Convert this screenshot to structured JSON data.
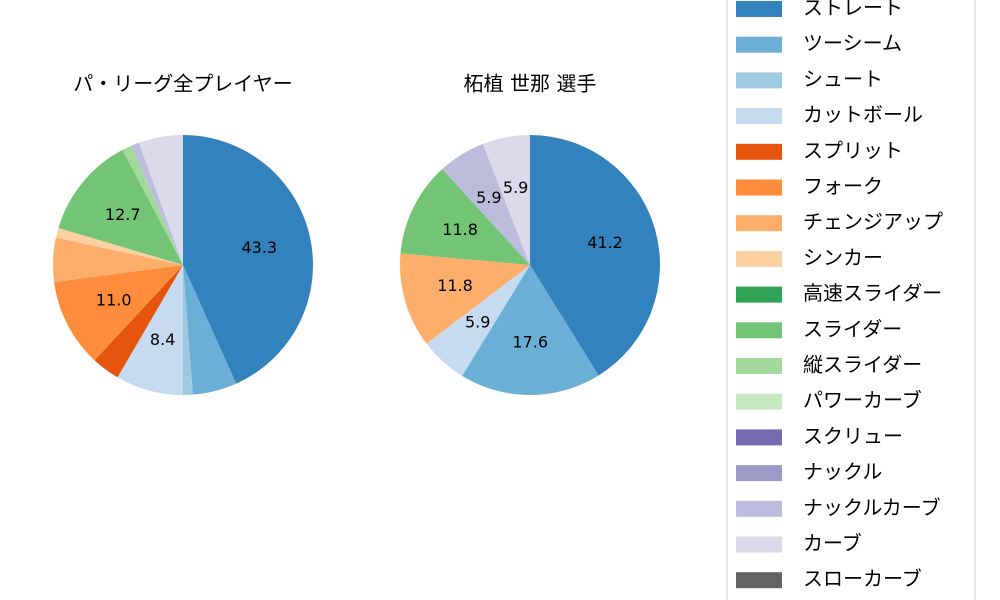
{
  "chart_data": [
    {
      "type": "pie",
      "title": "パ・リーグ全プレイヤー",
      "categories": [
        "ストレート",
        "ツーシーム",
        "シュート",
        "カットボール",
        "スプリット",
        "フォーク",
        "チェンジアップ",
        "シンカー",
        "高速スライダー",
        "スライダー",
        "縦スライダー",
        "パワーカーブ",
        "スクリュー",
        "ナックル",
        "ナックルカーブ",
        "カーブ",
        "スローカーブ"
      ],
      "colors": [
        "#3182bd",
        "#6baed6",
        "#9ecae1",
        "#c6dbef",
        "#e6550d",
        "#fd8d3c",
        "#fdae6b",
        "#fdd0a2",
        "#31a354",
        "#74c476",
        "#a1d99b",
        "#c7e9c0",
        "#756bb1",
        "#9e9ac8",
        "#bcbddc",
        "#dadaeb",
        "#636363"
      ],
      "values": [
        43.3,
        5.5,
        1.2,
        8.4,
        3.5,
        11.0,
        5.5,
        1.2,
        0,
        12.7,
        1.2,
        0,
        0,
        0,
        1.0,
        5.5,
        0
      ],
      "value_labels": [
        "43.3",
        null,
        null,
        "8.4",
        null,
        "11.0",
        null,
        null,
        null,
        "12.7",
        null,
        null,
        null,
        null,
        null,
        null,
        null
      ]
    },
    {
      "type": "pie",
      "title": "柘植 世那  選手",
      "categories": [
        "ストレート",
        "ツーシーム",
        "シュート",
        "カットボール",
        "スプリット",
        "フォーク",
        "チェンジアップ",
        "シンカー",
        "高速スライダー",
        "スライダー",
        "縦スライダー",
        "パワーカーブ",
        "スクリュー",
        "ナックル",
        "ナックルカーブ",
        "カーブ",
        "スローカーブ"
      ],
      "colors": [
        "#3182bd",
        "#6baed6",
        "#9ecae1",
        "#c6dbef",
        "#e6550d",
        "#fd8d3c",
        "#fdae6b",
        "#fdd0a2",
        "#31a354",
        "#74c476",
        "#a1d99b",
        "#c7e9c0",
        "#756bb1",
        "#9e9ac8",
        "#bcbddc",
        "#dadaeb",
        "#636363"
      ],
      "values": [
        41.2,
        17.6,
        0,
        5.9,
        0,
        0,
        11.8,
        0,
        0,
        11.8,
        0,
        0,
        0,
        0,
        5.9,
        5.9,
        0
      ],
      "value_labels": [
        "41.2",
        "17.6",
        null,
        "5.9",
        null,
        null,
        "11.8",
        null,
        null,
        "11.8",
        null,
        null,
        null,
        null,
        "5.9",
        "5.9",
        null
      ]
    }
  ]
}
